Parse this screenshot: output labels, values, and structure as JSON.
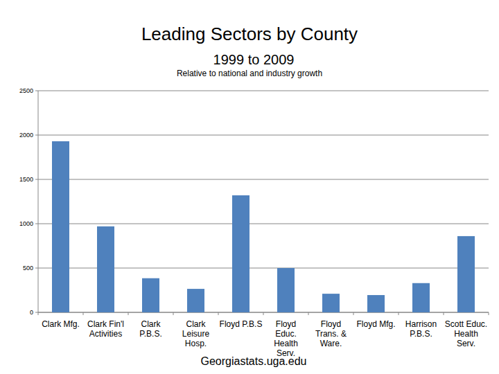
{
  "chart_data": {
    "type": "bar",
    "title": "Leading Sectors by County",
    "subtitle": "1999 to 2009",
    "annotations": [
      "Relative to national and industry growth",
      "Georgiastats.uga.edu"
    ],
    "categories": [
      "Clark Mfg.",
      "Clark Fin'l Activities",
      "Clark P.B.S.",
      "Clark Leisure Hosp.",
      "Floyd P.B.S",
      "Floyd Educ. Health Serv.",
      "Floyd Trans. & Ware.",
      "Floyd Mfg.",
      "Harrison P.B.S.",
      "Scott Educ. Health Serv."
    ],
    "values": [
      1930,
      970,
      385,
      265,
      1320,
      500,
      210,
      195,
      330,
      860
    ],
    "color": "#4f81bd",
    "ylim": [
      0,
      2500
    ],
    "yticks": [
      0,
      500,
      1000,
      1500,
      2000,
      2500
    ],
    "grid": true
  }
}
